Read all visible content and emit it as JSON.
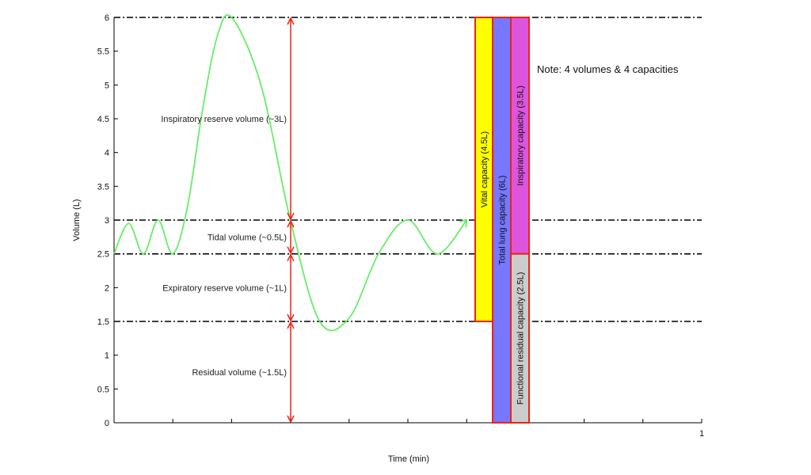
{
  "chart_data": {
    "type": "line",
    "xlabel": "Time (min)",
    "ylabel": "Volume (L)",
    "xlim": [
      0,
      1
    ],
    "ylim": [
      0,
      6
    ],
    "y_ticks": [
      0,
      0.5,
      1,
      1.5,
      2,
      2.5,
      3,
      3.5,
      4,
      4.5,
      5,
      5.5,
      6
    ],
    "y_tick_labels": [
      "0",
      "0.5",
      "1",
      "1.5",
      "2",
      "2.5",
      "3",
      "3.5",
      "4",
      "4.5",
      "5",
      "5.5",
      "6"
    ],
    "x_ticks": [
      0,
      0.1,
      0.2,
      0.3,
      0.4,
      0.5,
      0.6,
      0.7,
      0.8,
      0.9,
      1
    ],
    "x_tick_labels": [
      "1"
    ],
    "grid": false,
    "reference_lines": [
      6,
      3,
      2.5,
      1.5
    ],
    "series": [
      {
        "color": "#66ee66",
        "x": [
          0,
          0.025,
          0.05,
          0.075,
          0.1,
          0.125,
          0.15,
          0.175,
          0.2,
          0.25,
          0.3,
          0.35,
          0.4,
          0.45,
          0.5,
          0.55,
          0.6
        ],
        "y": [
          2.5,
          2.95,
          2.5,
          3.0,
          2.5,
          3.2,
          4.6,
          5.7,
          6.0,
          5.0,
          3.0,
          1.5,
          1.55,
          2.5,
          3.0,
          2.5,
          3.0
        ]
      }
    ],
    "volume_arrows": [
      {
        "label": "Inspiratory reserve volume (~3L)",
        "from": 3,
        "to": 6
      },
      {
        "label": "Tidal volume (~0.5L)",
        "from": 2.5,
        "to": 3
      },
      {
        "label": "Expiratory reserve volume (~1L)",
        "from": 1.5,
        "to": 2.5
      },
      {
        "label": "Residual volume (~1.5L)",
        "from": 0,
        "to": 1.5
      }
    ],
    "capacity_bars": [
      {
        "label": "Vital capacity (4.5L)",
        "from": 1.5,
        "to": 6,
        "color": "#ffff00"
      },
      {
        "label": "Total lung capacity (6L)",
        "from": 0,
        "to": 6,
        "color": "#7777ff"
      },
      {
        "label": "Inspiratory capacity (3.5L)",
        "from": 2.5,
        "to": 6,
        "color": "#dd55dd"
      },
      {
        "label": "Functional residual capacity (2.5L)",
        "from": 0,
        "to": 2.5,
        "color": "#cccccc"
      }
    ],
    "note": "Note: 4 volumes & 4 capacities"
  }
}
